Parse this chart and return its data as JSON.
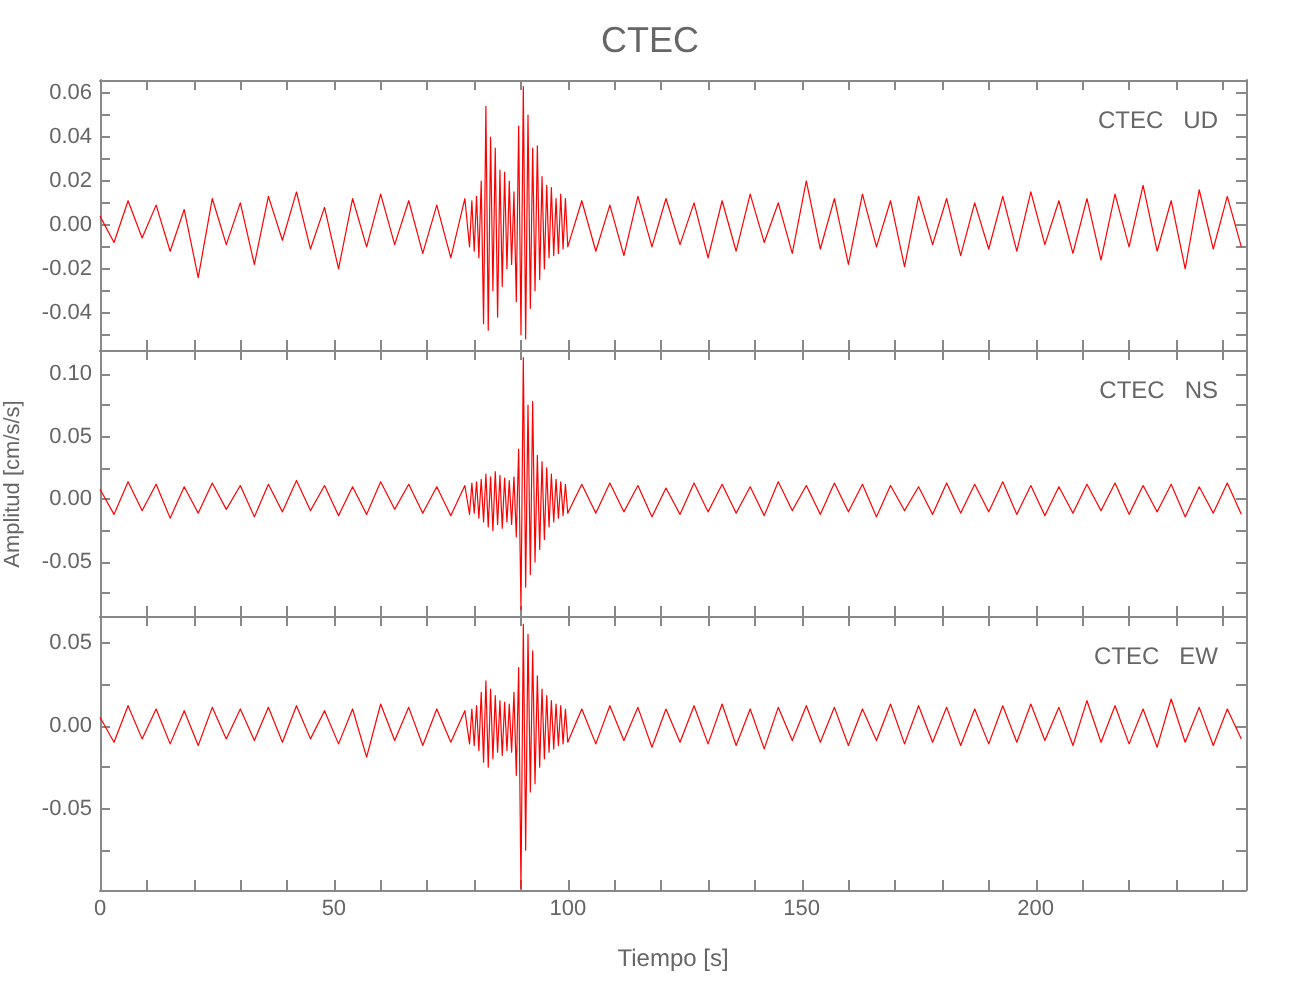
{
  "chart_data": [
    {
      "type": "line",
      "title": "CTEC",
      "annotations": [
        "CTEC   UD"
      ],
      "tick_labels": "y",
      "grid": false,
      "marker": "none",
      "line_style": "solid",
      "xlim": [
        0,
        245
      ],
      "xticks": [
        0,
        {
          "value": 10,
          "label": null
        },
        {
          "value": 20,
          "label": null
        },
        {
          "value": 30,
          "label": null
        },
        {
          "value": 40,
          "label": null
        },
        50,
        {
          "value": 60,
          "label": null
        },
        {
          "value": 70,
          "label": null
        },
        {
          "value": 80,
          "label": null
        },
        {
          "value": 90,
          "label": null
        },
        100,
        {
          "value": 110,
          "label": null
        },
        {
          "value": 120,
          "label": null
        },
        {
          "value": 130,
          "label": null
        },
        {
          "value": 140,
          "label": null
        },
        150,
        {
          "value": 160,
          "label": null
        },
        {
          "value": 170,
          "label": null
        },
        {
          "value": 180,
          "label": null
        },
        {
          "value": 190,
          "label": null
        },
        200,
        {
          "value": 210,
          "label": null
        },
        {
          "value": 220,
          "label": null
        },
        {
          "value": 230,
          "label": null
        },
        {
          "value": 240,
          "label": null
        }
      ],
      "ylim": [
        -0.057,
        0.066
      ],
      "yticks": [
        -0.04,
        {
          "value": -0.05,
          "label": null
        },
        {
          "value": -0.03,
          "label": null
        },
        -0.02,
        {
          "value": -0.01,
          "label": null
        },
        {
          "value": 0,
          "label": "0.00"
        },
        {
          "value": 0.01,
          "label": null
        },
        0.02,
        {
          "value": 0.03,
          "label": null
        },
        0.04,
        {
          "value": 0.05,
          "label": null
        },
        0.06
      ],
      "x": [
        0,
        3,
        6,
        9,
        12,
        15,
        18,
        21,
        24,
        27,
        30,
        33,
        36,
        39,
        42,
        45,
        48,
        51,
        54,
        57,
        60,
        63,
        66,
        69,
        72,
        75,
        78,
        79,
        79.5,
        80,
        80.5,
        81,
        81.5,
        82,
        82.5,
        83,
        83.5,
        84,
        84.5,
        85,
        85.5,
        86,
        86.5,
        87,
        87.5,
        88,
        88.5,
        89,
        89.5,
        90,
        90.5,
        91,
        91.5,
        92,
        92.5,
        93,
        93.5,
        94,
        94.5,
        95,
        95.5,
        96,
        96.5,
        97,
        97.5,
        98,
        98.5,
        99,
        99.5,
        100,
        103,
        106,
        109,
        112,
        115,
        118,
        121,
        124,
        127,
        130,
        133,
        136,
        139,
        142,
        145,
        148,
        151,
        154,
        157,
        160,
        163,
        166,
        169,
        172,
        175,
        178,
        181,
        184,
        187,
        190,
        193,
        196,
        199,
        202,
        205,
        208,
        211,
        214,
        217,
        220,
        223,
        226,
        229,
        232,
        235,
        238,
        241,
        244
      ],
      "series": [
        {
          "color": "#ff0000",
          "values": [
            0.004,
            -0.008,
            0.011,
            -0.006,
            0.009,
            -0.012,
            0.007,
            -0.024,
            0.012,
            -0.009,
            0.01,
            -0.018,
            0.013,
            -0.007,
            0.015,
            -0.011,
            0.008,
            -0.02,
            0.012,
            -0.01,
            0.014,
            -0.009,
            0.011,
            -0.013,
            0.009,
            -0.015,
            0.012,
            -0.01,
            0.011,
            -0.012,
            0.013,
            -0.015,
            0.02,
            -0.045,
            0.054,
            -0.048,
            0.04,
            -0.03,
            0.035,
            -0.042,
            0.025,
            -0.028,
            0.024,
            -0.02,
            0.02,
            -0.018,
            0.015,
            -0.035,
            0.045,
            -0.05,
            0.063,
            -0.052,
            0.05,
            -0.038,
            0.035,
            -0.03,
            0.036,
            -0.025,
            0.022,
            -0.02,
            0.018,
            -0.015,
            0.017,
            -0.014,
            0.012,
            -0.013,
            0.014,
            -0.011,
            0.012,
            -0.01,
            0.011,
            -0.012,
            0.009,
            -0.014,
            0.013,
            -0.01,
            0.012,
            -0.009,
            0.01,
            -0.015,
            0.011,
            -0.012,
            0.014,
            -0.008,
            0.01,
            -0.013,
            0.02,
            -0.011,
            0.012,
            -0.018,
            0.014,
            -0.01,
            0.011,
            -0.019,
            0.013,
            -0.009,
            0.012,
            -0.014,
            0.01,
            -0.011,
            0.013,
            -0.012,
            0.015,
            -0.009,
            0.011,
            -0.013,
            0.012,
            -0.016,
            0.014,
            -0.01,
            0.018,
            -0.012,
            0.011,
            -0.02,
            0.016,
            -0.011,
            0.013,
            -0.01
          ]
        }
      ]
    },
    {
      "type": "line",
      "ylabel": "Amplitud [cm/s/s]",
      "annotations": [
        "CTEC   NS"
      ],
      "tick_labels": "y",
      "grid": false,
      "marker": "none",
      "line_style": "solid",
      "xlim": [
        0,
        245
      ],
      "xticks": [
        0,
        {
          "value": 10,
          "label": null
        },
        {
          "value": 20,
          "label": null
        },
        {
          "value": 30,
          "label": null
        },
        {
          "value": 40,
          "label": null
        },
        50,
        {
          "value": 60,
          "label": null
        },
        {
          "value": 70,
          "label": null
        },
        {
          "value": 80,
          "label": null
        },
        {
          "value": 90,
          "label": null
        },
        100,
        {
          "value": 110,
          "label": null
        },
        {
          "value": 120,
          "label": null
        },
        {
          "value": 130,
          "label": null
        },
        {
          "value": 140,
          "label": null
        },
        150,
        {
          "value": 160,
          "label": null
        },
        {
          "value": 170,
          "label": null
        },
        {
          "value": 180,
          "label": null
        },
        {
          "value": 190,
          "label": null
        },
        200,
        {
          "value": 210,
          "label": null
        },
        {
          "value": 220,
          "label": null
        },
        {
          "value": 230,
          "label": null
        },
        {
          "value": 240,
          "label": null
        }
      ],
      "ylim": [
        -0.093,
        0.119
      ],
      "yticks": [
        {
          "value": -0.075,
          "label": null
        },
        -0.05,
        {
          "value": -0.025,
          "label": null
        },
        {
          "value": 0,
          "label": "0.00"
        },
        {
          "value": 0.025,
          "label": null
        },
        0.05,
        {
          "value": 0.075,
          "label": null
        },
        {
          "value": 0.1,
          "label": "0.10"
        }
      ],
      "x": [
        0,
        3,
        6,
        9,
        12,
        15,
        18,
        21,
        24,
        27,
        30,
        33,
        36,
        39,
        42,
        45,
        48,
        51,
        54,
        57,
        60,
        63,
        66,
        69,
        72,
        75,
        78,
        79,
        79.5,
        80,
        80.5,
        81,
        81.5,
        82,
        82.5,
        83,
        83.5,
        84,
        84.5,
        85,
        85.5,
        86,
        86.5,
        87,
        87.5,
        88,
        88.5,
        89,
        89.5,
        90,
        90.5,
        91,
        91.5,
        92,
        92.5,
        93,
        93.5,
        94,
        94.5,
        95,
        95.5,
        96,
        96.5,
        97,
        97.5,
        98,
        98.5,
        99,
        99.5,
        100,
        103,
        106,
        109,
        112,
        115,
        118,
        121,
        124,
        127,
        130,
        133,
        136,
        139,
        142,
        145,
        148,
        151,
        154,
        157,
        160,
        163,
        166,
        169,
        172,
        175,
        178,
        181,
        184,
        187,
        190,
        193,
        196,
        199,
        202,
        205,
        208,
        211,
        214,
        217,
        220,
        223,
        226,
        229,
        232,
        235,
        238,
        241,
        244
      ],
      "series": [
        {
          "color": "#ff0000",
          "values": [
            0.008,
            -0.012,
            0.014,
            -0.009,
            0.012,
            -0.015,
            0.01,
            -0.011,
            0.013,
            -0.008,
            0.011,
            -0.014,
            0.012,
            -0.01,
            0.015,
            -0.009,
            0.011,
            -0.013,
            0.01,
            -0.012,
            0.014,
            -0.008,
            0.012,
            -0.011,
            0.01,
            -0.013,
            0.011,
            -0.012,
            0.013,
            -0.011,
            0.014,
            -0.015,
            0.016,
            -0.018,
            0.02,
            -0.022,
            0.018,
            -0.025,
            0.022,
            -0.02,
            0.019,
            -0.023,
            0.017,
            -0.018,
            0.015,
            -0.02,
            0.018,
            -0.03,
            0.04,
            -0.088,
            0.113,
            -0.07,
            0.075,
            -0.06,
            0.078,
            -0.05,
            0.035,
            -0.04,
            0.03,
            -0.032,
            0.025,
            -0.022,
            0.02,
            -0.018,
            0.016,
            -0.015,
            0.014,
            -0.013,
            0.012,
            -0.011,
            0.012,
            -0.011,
            0.013,
            -0.01,
            0.011,
            -0.014,
            0.009,
            -0.012,
            0.013,
            -0.01,
            0.012,
            -0.011,
            0.01,
            -0.013,
            0.014,
            -0.009,
            0.011,
            -0.012,
            0.013,
            -0.01,
            0.012,
            -0.014,
            0.011,
            -0.009,
            0.01,
            -0.012,
            0.013,
            -0.011,
            0.012,
            -0.01,
            0.014,
            -0.012,
            0.011,
            -0.013,
            0.01,
            -0.011,
            0.012,
            -0.009,
            0.013,
            -0.012,
            0.011,
            -0.01,
            0.012,
            -0.014,
            0.01,
            -0.011,
            0.013,
            -0.012
          ]
        }
      ]
    },
    {
      "type": "line",
      "xlabel": "Tiempo [s]",
      "annotations": [
        "CTEC   EW"
      ],
      "grid": false,
      "marker": "none",
      "line_style": "solid",
      "xlim": [
        0,
        245
      ],
      "xticks": [
        0,
        {
          "value": 10,
          "label": null
        },
        {
          "value": 20,
          "label": null
        },
        {
          "value": 30,
          "label": null
        },
        {
          "value": 40,
          "label": null
        },
        50,
        {
          "value": 60,
          "label": null
        },
        {
          "value": 70,
          "label": null
        },
        {
          "value": 80,
          "label": null
        },
        {
          "value": 90,
          "label": null
        },
        100,
        {
          "value": 110,
          "label": null
        },
        {
          "value": 120,
          "label": null
        },
        {
          "value": 130,
          "label": null
        },
        {
          "value": 140,
          "label": null
        },
        150,
        {
          "value": 160,
          "label": null
        },
        {
          "value": 170,
          "label": null
        },
        {
          "value": 180,
          "label": null
        },
        {
          "value": 190,
          "label": null
        },
        200,
        {
          "value": 210,
          "label": null
        },
        {
          "value": 220,
          "label": null
        },
        {
          "value": 230,
          "label": null
        },
        {
          "value": 240,
          "label": null
        }
      ],
      "ylim": [
        -0.099,
        0.066
      ],
      "yticks": [
        {
          "value": -0.075,
          "label": null
        },
        -0.05,
        {
          "value": -0.025,
          "label": null
        },
        {
          "value": 0,
          "label": "0.00"
        },
        {
          "value": 0.025,
          "label": null
        },
        0.05
      ],
      "x": [
        0,
        3,
        6,
        9,
        12,
        15,
        18,
        21,
        24,
        27,
        30,
        33,
        36,
        39,
        42,
        45,
        48,
        51,
        54,
        57,
        60,
        63,
        66,
        69,
        72,
        75,
        78,
        79,
        79.5,
        80,
        80.5,
        81,
        81.5,
        82,
        82.5,
        83,
        83.5,
        84,
        84.5,
        85,
        85.5,
        86,
        86.5,
        87,
        87.5,
        88,
        88.5,
        89,
        89.5,
        90,
        90.5,
        91,
        91.5,
        92,
        92.5,
        93,
        93.5,
        94,
        94.5,
        95,
        95.5,
        96,
        96.5,
        97,
        97.5,
        98,
        98.5,
        99,
        99.5,
        100,
        103,
        106,
        109,
        112,
        115,
        118,
        121,
        124,
        127,
        130,
        133,
        136,
        139,
        142,
        145,
        148,
        151,
        154,
        157,
        160,
        163,
        166,
        169,
        172,
        175,
        178,
        181,
        184,
        187,
        190,
        193,
        196,
        199,
        202,
        205,
        208,
        211,
        214,
        217,
        220,
        223,
        226,
        229,
        232,
        235,
        238,
        241,
        244
      ],
      "series": [
        {
          "color": "#ff0000",
          "values": [
            0.005,
            -0.01,
            0.012,
            -0.008,
            0.01,
            -0.011,
            0.009,
            -0.012,
            0.011,
            -0.008,
            0.01,
            -0.009,
            0.011,
            -0.01,
            0.012,
            -0.008,
            0.009,
            -0.011,
            0.01,
            -0.019,
            0.013,
            -0.009,
            0.011,
            -0.012,
            0.01,
            -0.01,
            0.009,
            -0.011,
            0.01,
            -0.012,
            0.012,
            -0.015,
            0.02,
            -0.022,
            0.027,
            -0.025,
            0.022,
            -0.02,
            0.018,
            -0.016,
            0.015,
            -0.018,
            0.014,
            -0.015,
            0.013,
            -0.016,
            0.02,
            -0.03,
            0.035,
            -0.098,
            0.061,
            -0.075,
            0.055,
            -0.04,
            0.045,
            -0.035,
            0.03,
            -0.025,
            0.022,
            -0.02,
            0.018,
            -0.016,
            0.015,
            -0.014,
            0.013,
            -0.012,
            0.012,
            -0.011,
            0.01,
            -0.01,
            0.01,
            -0.011,
            0.012,
            -0.009,
            0.011,
            -0.013,
            0.01,
            -0.01,
            0.012,
            -0.011,
            0.013,
            -0.012,
            0.01,
            -0.014,
            0.011,
            -0.009,
            0.012,
            -0.01,
            0.011,
            -0.012,
            0.01,
            -0.009,
            0.013,
            -0.011,
            0.012,
            -0.01,
            0.011,
            -0.012,
            0.01,
            -0.011,
            0.012,
            -0.01,
            0.013,
            -0.009,
            0.011,
            -0.012,
            0.015,
            -0.01,
            0.012,
            -0.011,
            0.01,
            -0.013,
            0.016,
            -0.01,
            0.011,
            -0.012,
            0.01,
            -0.008
          ]
        }
      ]
    }
  ]
}
